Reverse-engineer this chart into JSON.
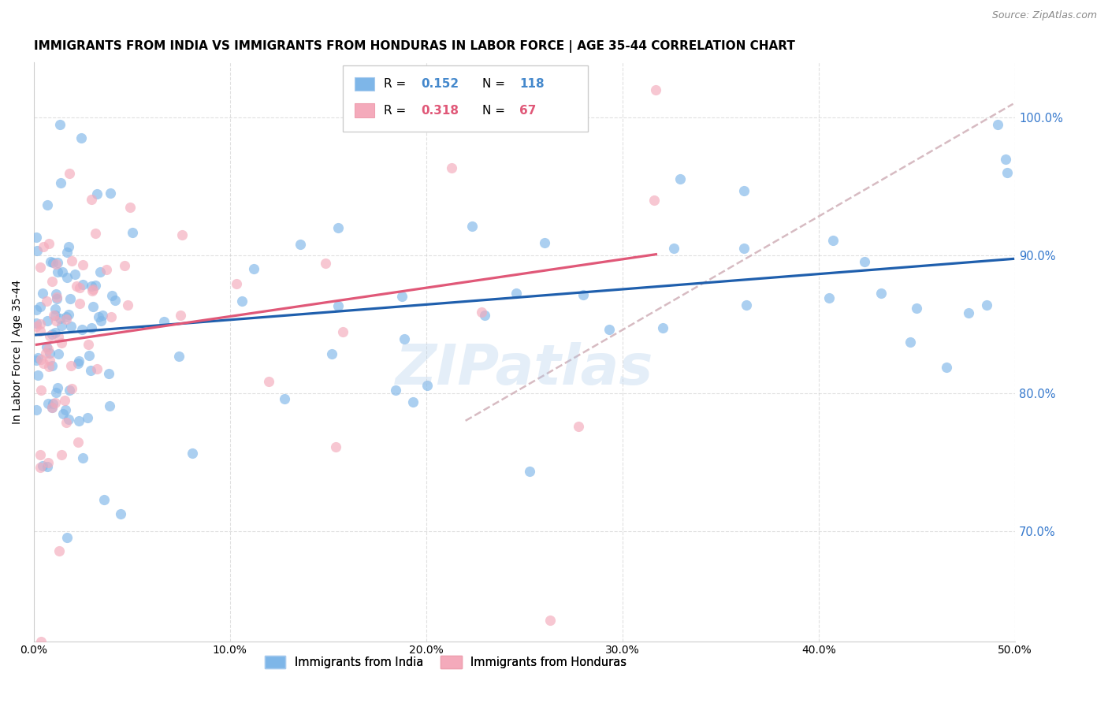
{
  "title": "IMMIGRANTS FROM INDIA VS IMMIGRANTS FROM HONDURAS IN LABOR FORCE | AGE 35-44 CORRELATION CHART",
  "source": "Source: ZipAtlas.com",
  "ylabel": "In Labor Force | Age 35-44",
  "legend_india_R": "0.152",
  "legend_india_N": "118",
  "legend_honduras_R": "0.318",
  "legend_honduras_N": "67",
  "india_color": "#7EB6E8",
  "honduras_color": "#F4AABB",
  "india_line_color": "#1F5FAD",
  "honduras_line_color": "#E05878",
  "dashed_line_color": "#D0B0B8",
  "xlim": [
    0.0,
    0.5
  ],
  "ylim": [
    0.62,
    1.04
  ],
  "xticks": [
    0.0,
    0.1,
    0.2,
    0.3,
    0.4,
    0.5
  ],
  "yticks": [
    0.7,
    0.8,
    0.9,
    1.0
  ],
  "watermark": "ZIPatlas",
  "title_fontsize": 11,
  "source_fontsize": 9,
  "legend_india_color_val": "#4488CC",
  "legend_honduras_color_val": "#E05878"
}
